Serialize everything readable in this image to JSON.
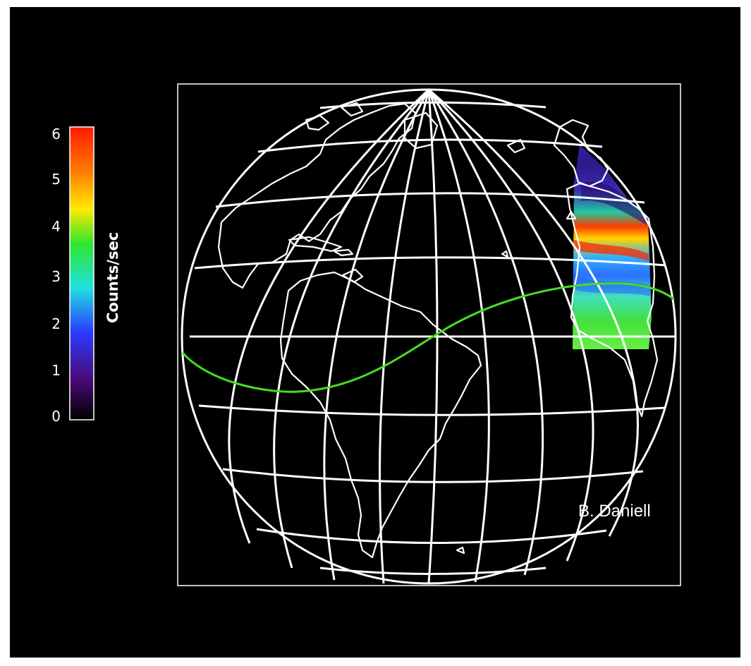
{
  "colorbar": {
    "label": "Counts/sec",
    "ticks": [
      "0",
      "1",
      "2",
      "3",
      "4",
      "5",
      "6"
    ],
    "min": 0,
    "max": 6,
    "colors": [
      "#000000",
      "#4a0a7a",
      "#2a3cff",
      "#1fe0e0",
      "#2ee62e",
      "#ffea00",
      "#ff7a00",
      "#ff1a00"
    ]
  },
  "credit": "B. Daniell",
  "colors": {
    "background": "#000000",
    "coastline": "#ffffff",
    "grid": "#ffffff",
    "ground_track": "#44dd22"
  }
}
